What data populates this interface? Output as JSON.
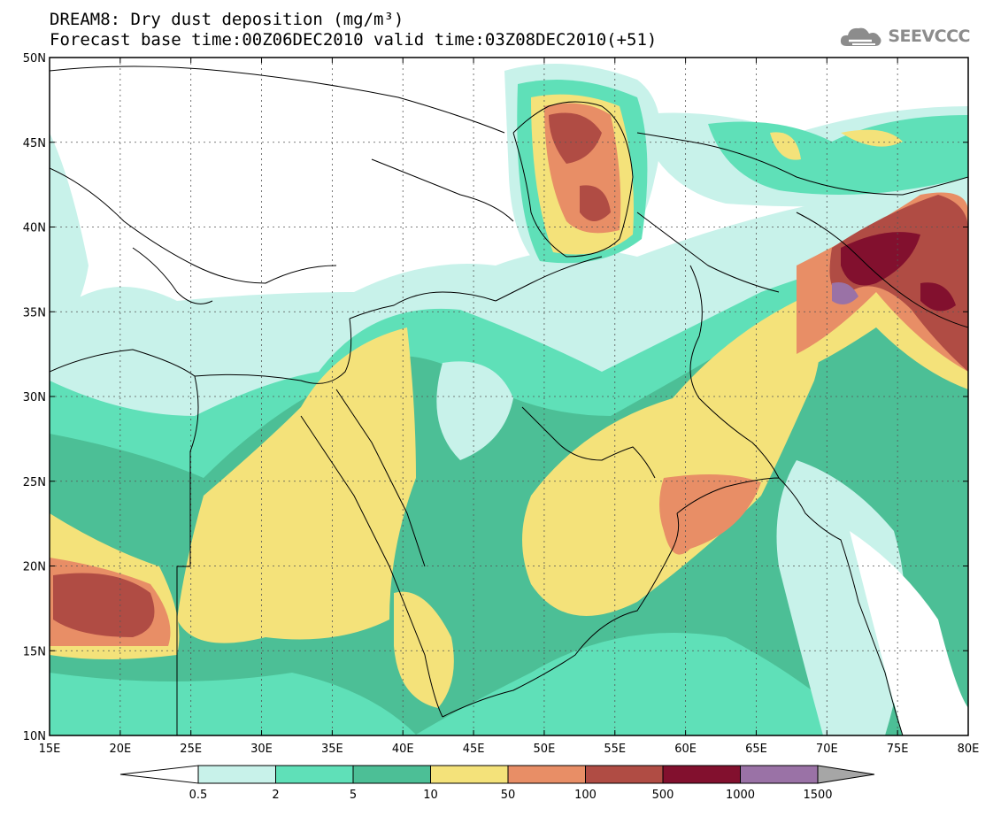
{
  "header": {
    "title_line1": "DREAM8: Dry dust deposition (mg/m³)",
    "title_line2": "Forecast base time:00Z06DEC2010 valid time:03Z08DEC2010(+51)"
  },
  "logo": {
    "text": "SEEVCCC",
    "icon": "cloud-icon"
  },
  "map": {
    "projection": "lat-lon",
    "lon_range": [
      15,
      80
    ],
    "lat_range": [
      10,
      50
    ],
    "grid": "dotted",
    "coastlines": true,
    "borders": true,
    "lat_ticks": [
      {
        "value": 10,
        "label": "10N"
      },
      {
        "value": 15,
        "label": "15N"
      },
      {
        "value": 20,
        "label": "20N"
      },
      {
        "value": 25,
        "label": "25N"
      },
      {
        "value": 30,
        "label": "30N"
      },
      {
        "value": 35,
        "label": "35N"
      },
      {
        "value": 40,
        "label": "40N"
      },
      {
        "value": 45,
        "label": "45N"
      },
      {
        "value": 50,
        "label": "50N"
      }
    ],
    "lon_ticks": [
      {
        "value": 15,
        "label": "15E"
      },
      {
        "value": 20,
        "label": "20E"
      },
      {
        "value": 25,
        "label": "25E"
      },
      {
        "value": 30,
        "label": "30E"
      },
      {
        "value": 35,
        "label": "35E"
      },
      {
        "value": 40,
        "label": "40E"
      },
      {
        "value": 45,
        "label": "45E"
      },
      {
        "value": 50,
        "label": "50E"
      },
      {
        "value": 55,
        "label": "55E"
      },
      {
        "value": 60,
        "label": "60E"
      },
      {
        "value": 65,
        "label": "65E"
      },
      {
        "value": 70,
        "label": "70E"
      },
      {
        "value": 75,
        "label": "75E"
      },
      {
        "value": 80,
        "label": "80E"
      }
    ]
  },
  "colorbar": {
    "boundaries": [
      "0.5",
      "2",
      "5",
      "10",
      "50",
      "100",
      "500",
      "1000",
      "1500"
    ],
    "colors": [
      "#c8f2ea",
      "#5fe0b8",
      "#4cbf96",
      "#f4e27a",
      "#e88e66",
      "#b04c44",
      "#82102e",
      "#9a72a6"
    ],
    "under_color": "#ffffff",
    "over_color": "#a6a6a6"
  }
}
